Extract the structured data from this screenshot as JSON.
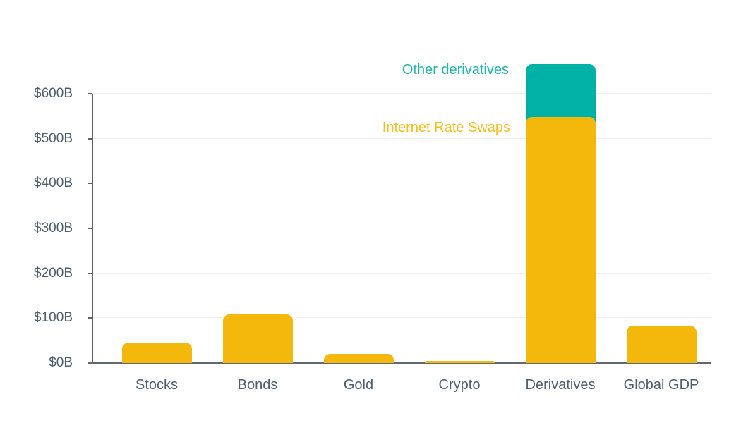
{
  "chart_data": {
    "type": "bar",
    "stacked": true,
    "unit": "USD billions",
    "categories": [
      "Stocks",
      "Bonds",
      "Gold",
      "Crypto",
      "Derivatives",
      "Global GDP"
    ],
    "series": [
      {
        "name": "Internet Rate Swaps",
        "color": "#f4b70b",
        "values": [
          45,
          108,
          21,
          4,
          548,
          83
        ]
      },
      {
        "name": "Other derivatives",
        "color": "#00b2a6",
        "values": [
          0,
          0,
          0,
          0,
          118,
          0
        ]
      }
    ],
    "annotations": [
      {
        "text": "Other derivatives",
        "color": "#1eb7ac"
      },
      {
        "text": "Internet Rate Swaps",
        "color": "#f9bd17"
      }
    ],
    "yticks": [
      {
        "value": 0,
        "label": "$0B"
      },
      {
        "value": 100,
        "label": "$100B"
      },
      {
        "value": 200,
        "label": "$200B"
      },
      {
        "value": 300,
        "label": "$300B"
      },
      {
        "value": 400,
        "label": "$400B"
      },
      {
        "value": 500,
        "label": "$500B"
      },
      {
        "value": 600,
        "label": "$600B"
      }
    ],
    "ylim": [
      0,
      600
    ],
    "grid": true,
    "legend_position": "inline-labels-left-of-derivatives-bar",
    "colors": {
      "axis": "#56646f",
      "tick_label": "#4d5e6c",
      "gridline": "#efefef",
      "background": "#ffffff"
    }
  }
}
